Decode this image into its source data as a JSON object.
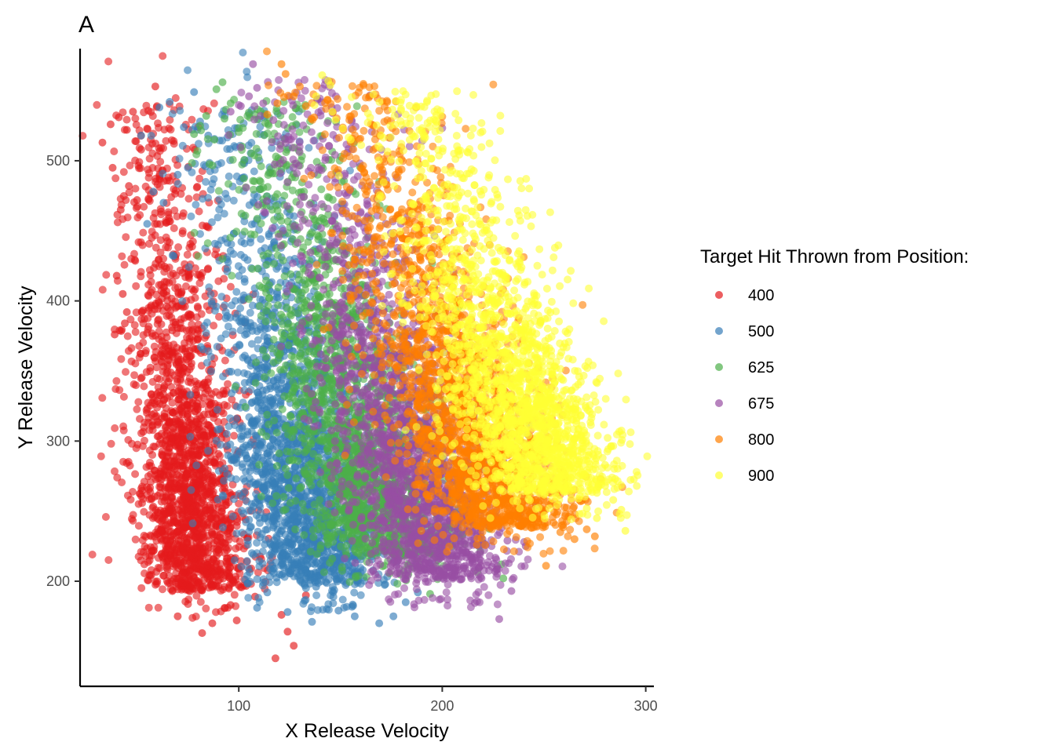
{
  "chart_data": {
    "type": "scatter",
    "panel_tag": "A",
    "title": "",
    "xlabel": "X Release Velocity",
    "ylabel": "Y Release Velocity",
    "xlim": [
      22,
      304
    ],
    "ylim": [
      125,
      580
    ],
    "x_ticks": [
      100,
      200,
      300
    ],
    "y_ticks": [
      200,
      300,
      400,
      500
    ],
    "grid": false,
    "legend": {
      "title": "Target Hit Thrown from Position:",
      "position": "right"
    },
    "series": [
      {
        "name": "400",
        "color": "#E41A1C",
        "approx_points": 2000,
        "cluster": {
          "x_center": 70,
          "x_spread": 13,
          "y_range": [
            165,
            555
          ],
          "dx_per_y": -0.06
        },
        "points": [
          [
            33,
            513
          ],
          [
            37,
            526
          ],
          [
            41,
            531
          ],
          [
            45,
            522
          ],
          [
            48,
            535
          ],
          [
            52,
            508
          ],
          [
            59,
            553
          ],
          [
            38,
            495
          ],
          [
            42,
            465
          ],
          [
            46,
            482
          ],
          [
            50,
            472
          ],
          [
            40,
            418
          ],
          [
            43,
            405
          ],
          [
            45,
            392
          ],
          [
            39,
            376
          ],
          [
            44,
            384
          ],
          [
            66,
            251
          ],
          [
            76,
            196
          ],
          [
            70,
            175
          ],
          [
            82,
            163
          ],
          [
            87,
            170
          ],
          [
            99,
            172
          ],
          [
            108,
            189
          ],
          [
            118,
            145
          ],
          [
            121,
            176
          ],
          [
            124,
            164
          ],
          [
            127,
            154
          ],
          [
            133,
            190
          ],
          [
            96,
            183
          ],
          [
            104,
            214
          ]
        ]
      },
      {
        "name": "500",
        "color": "#377EB8",
        "approx_points": 2000,
        "cluster": {
          "x_center": 120,
          "x_spread": 17,
          "y_range": [
            170,
            550
          ],
          "dx_per_y": -0.12
        },
        "points": [
          [
            52,
            518
          ],
          [
            61,
            538
          ],
          [
            66,
            542
          ],
          [
            73,
            524
          ],
          [
            78,
            549
          ],
          [
            81,
            528
          ],
          [
            85,
            518
          ],
          [
            58,
            478
          ],
          [
            63,
            470
          ],
          [
            70,
            490
          ],
          [
            75,
            495
          ],
          [
            55,
            455
          ],
          [
            68,
            432
          ],
          [
            109,
            181
          ],
          [
            114,
            192
          ],
          [
            124,
            178
          ],
          [
            136,
            171
          ],
          [
            138,
            196
          ],
          [
            149,
            179
          ],
          [
            157,
            175
          ],
          [
            169,
            170
          ],
          [
            176,
            175
          ],
          [
            182,
            185
          ],
          [
            188,
            192
          ],
          [
            151,
            222
          ],
          [
            161,
            227
          ],
          [
            187,
            212
          ]
        ]
      },
      {
        "name": "625",
        "color": "#4DAF4A",
        "approx_points": 2000,
        "cluster": {
          "x_center": 145,
          "x_spread": 18,
          "y_range": [
            190,
            555
          ],
          "dx_per_y": -0.18
        },
        "points": [
          [
            92,
            556
          ],
          [
            89,
            551
          ],
          [
            96,
            541
          ],
          [
            84,
            532
          ],
          [
            81,
            525
          ],
          [
            78,
            519
          ],
          [
            88,
            515
          ],
          [
            93,
            530
          ],
          [
            194,
            191
          ],
          [
            198,
            215
          ],
          [
            205,
            225
          ],
          [
            210,
            234
          ],
          [
            218,
            225
          ],
          [
            229,
            212
          ],
          [
            230,
            202
          ],
          [
            188,
            228
          ]
        ]
      },
      {
        "name": "675",
        "color": "#984EA3",
        "approx_points": 2000,
        "cluster": {
          "x_center": 168,
          "x_spread": 18,
          "y_range": [
            173,
            570
          ],
          "dx_per_y": -0.2
        },
        "points": [
          [
            107,
            569
          ],
          [
            109,
            552
          ],
          [
            105,
            546
          ],
          [
            101,
            539
          ],
          [
            96,
            535
          ],
          [
            112,
            541
          ],
          [
            117,
            529
          ],
          [
            228,
            173
          ],
          [
            234,
            193
          ],
          [
            226,
            207
          ],
          [
            219,
            211
          ],
          [
            214,
            219
          ],
          [
            232,
            229
          ],
          [
            241,
            225
          ],
          [
            246,
            254
          ],
          [
            238,
            248
          ]
        ]
      },
      {
        "name": "800",
        "color": "#FF7F00",
        "approx_points": 2000,
        "cluster": {
          "x_center": 195,
          "x_spread": 18,
          "y_range": [
            210,
            570
          ],
          "dx_per_y": -0.23
        },
        "points": [
          [
            121,
            569
          ],
          [
            123,
            562
          ],
          [
            130,
            553
          ],
          [
            127,
            546
          ],
          [
            133,
            539
          ],
          [
            137,
            531
          ],
          [
            119,
            541
          ],
          [
            114,
            533
          ],
          [
            251,
            211
          ],
          [
            258,
            235
          ],
          [
            265,
            230
          ],
          [
            271,
            237
          ],
          [
            275,
            232
          ],
          [
            255,
            249
          ],
          [
            262,
            246
          ],
          [
            268,
            257
          ],
          [
            248,
            265
          ],
          [
            244,
            258
          ]
        ]
      },
      {
        "name": "900",
        "color": "#FFFF33",
        "approx_points": 2000,
        "cluster": {
          "x_center": 222,
          "x_spread": 18,
          "y_range": [
            236,
            562
          ],
          "dx_per_y": -0.24
        },
        "points": [
          [
            141,
            561
          ],
          [
            144,
            557
          ],
          [
            145,
            554
          ],
          [
            138,
            546
          ],
          [
            146,
            535
          ],
          [
            151,
            523
          ],
          [
            155,
            515
          ],
          [
            290,
            236
          ],
          [
            288,
            251
          ],
          [
            284,
            258
          ],
          [
            285,
            273
          ],
          [
            280,
            268
          ],
          [
            276,
            263
          ],
          [
            271,
            252
          ],
          [
            267,
            259
          ],
          [
            276,
            245
          ],
          [
            280,
            283
          ],
          [
            272,
            290
          ]
        ]
      }
    ]
  }
}
